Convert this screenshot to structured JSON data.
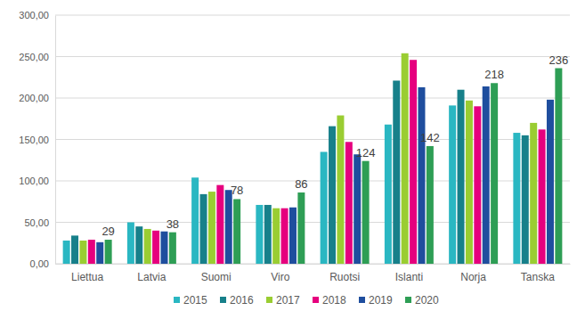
{
  "chart_data": {
    "type": "bar",
    "categories": [
      "Liettua",
      "Latvia",
      "Suomi",
      "Viro",
      "Ruotsi",
      "Islanti",
      "Norja",
      "Tanska"
    ],
    "series": [
      {
        "name": "2015",
        "color": "#2ab7c2",
        "values": [
          28,
          50,
          104,
          71,
          135,
          168,
          191,
          158
        ]
      },
      {
        "name": "2016",
        "color": "#17808a",
        "values": [
          34,
          45,
          84,
          71,
          166,
          221,
          210,
          155
        ]
      },
      {
        "name": "2017",
        "color": "#9acd32",
        "values": [
          28,
          42,
          87,
          67,
          179,
          254,
          197,
          170
        ]
      },
      {
        "name": "2018",
        "color": "#e6007e",
        "values": [
          29,
          40,
          95,
          67,
          147,
          246,
          190,
          162
        ]
      },
      {
        "name": "2019",
        "color": "#1f4e9e",
        "values": [
          26,
          39,
          89,
          68,
          132,
          213,
          214,
          198
        ]
      },
      {
        "name": "2020",
        "color": "#2e9e55",
        "values": [
          29,
          38,
          78,
          86,
          124,
          142,
          218,
          236
        ],
        "data_labels": true
      }
    ],
    "ylim": [
      0,
      300
    ],
    "yticks": [
      {
        "value": 0,
        "label": "0,00"
      },
      {
        "value": 50,
        "label": "50,00"
      },
      {
        "value": 100,
        "label": "100,00"
      },
      {
        "value": 150,
        "label": "150,00"
      },
      {
        "value": 200,
        "label": "200,00"
      },
      {
        "value": 250,
        "label": "250,00"
      },
      {
        "value": 300,
        "label": "300,00"
      }
    ],
    "grid": true,
    "legend": "bottom"
  }
}
